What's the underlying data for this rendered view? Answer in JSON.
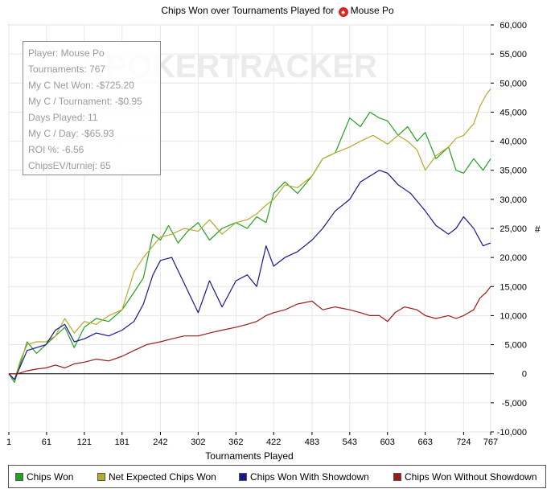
{
  "title_prefix": "Chips Won over Tournaments Played for",
  "title_player": "Mouse Po",
  "watermark": "POKERTRACKER",
  "info": [
    "Player: Mouse Po",
    "Tournaments: 767",
    "My C Net Won: -$725.20",
    "My C / Tournament: -$0.95",
    "Days Played: 11",
    "My C / Day: -$65.93",
    "ROI %: -6.56",
    "ChipsEV/turniej: 65"
  ],
  "chart_data": {
    "type": "line",
    "title": "Chips Won over Tournaments Played for Mouse Po",
    "xlabel": "Tournaments Played",
    "ylabel": "#",
    "xlim": [
      1,
      767
    ],
    "ylim": [
      -10000,
      60000
    ],
    "xticks": [
      1,
      61,
      121,
      181,
      242,
      302,
      362,
      422,
      483,
      543,
      603,
      663,
      724,
      767
    ],
    "yticks": [
      -10000,
      -5000,
      0,
      5000,
      10000,
      15000,
      20000,
      25000,
      30000,
      35000,
      40000,
      45000,
      50000,
      55000,
      60000
    ],
    "ytick_labels": [
      "-10,000",
      "-5,000",
      "0",
      "5,000",
      "10,000",
      "15,000",
      "20,000",
      "25,000",
      "30,000",
      "35,000",
      "40,000",
      "45,000",
      "50,000",
      "55,000",
      "60,000"
    ],
    "grid": true,
    "legend_position": "bottom",
    "series": [
      {
        "name": "Chips Won",
        "color": "#22a022",
        "points": [
          [
            1,
            0
          ],
          [
            10,
            -1500
          ],
          [
            20,
            2000
          ],
          [
            30,
            5500
          ],
          [
            45,
            3500
          ],
          [
            60,
            5000
          ],
          [
            75,
            6500
          ],
          [
            90,
            8000
          ],
          [
            105,
            4500
          ],
          [
            121,
            8000
          ],
          [
            140,
            9500
          ],
          [
            160,
            9000
          ],
          [
            181,
            11000
          ],
          [
            200,
            14000
          ],
          [
            215,
            16500
          ],
          [
            230,
            24000
          ],
          [
            242,
            23000
          ],
          [
            255,
            25500
          ],
          [
            270,
            22500
          ],
          [
            285,
            24500
          ],
          [
            302,
            26000
          ],
          [
            320,
            23000
          ],
          [
            340,
            25000
          ],
          [
            362,
            26000
          ],
          [
            380,
            25000
          ],
          [
            395,
            27000
          ],
          [
            410,
            26000
          ],
          [
            422,
            31000
          ],
          [
            440,
            33000
          ],
          [
            460,
            31000
          ],
          [
            483,
            34000
          ],
          [
            500,
            37000
          ],
          [
            520,
            38000
          ],
          [
            543,
            44000
          ],
          [
            560,
            42500
          ],
          [
            575,
            45000
          ],
          [
            590,
            44000
          ],
          [
            603,
            43500
          ],
          [
            620,
            41000
          ],
          [
            635,
            42500
          ],
          [
            650,
            40000
          ],
          [
            663,
            41500
          ],
          [
            680,
            37000
          ],
          [
            700,
            39000
          ],
          [
            712,
            35000
          ],
          [
            724,
            34500
          ],
          [
            740,
            37000
          ],
          [
            755,
            35000
          ],
          [
            767,
            37000
          ]
        ]
      },
      {
        "name": "Net Expected Chips Won",
        "color": "#b5aa2a",
        "points": [
          [
            1,
            0
          ],
          [
            10,
            -1000
          ],
          [
            20,
            2500
          ],
          [
            30,
            5000
          ],
          [
            45,
            5500
          ],
          [
            60,
            5500
          ],
          [
            75,
            6500
          ],
          [
            90,
            9500
          ],
          [
            105,
            7000
          ],
          [
            121,
            9000
          ],
          [
            140,
            8500
          ],
          [
            160,
            10000
          ],
          [
            181,
            11000
          ],
          [
            200,
            17500
          ],
          [
            215,
            20000
          ],
          [
            230,
            22000
          ],
          [
            242,
            23500
          ],
          [
            260,
            24000
          ],
          [
            280,
            25000
          ],
          [
            302,
            24500
          ],
          [
            320,
            26500
          ],
          [
            340,
            24000
          ],
          [
            362,
            26000
          ],
          [
            380,
            26500
          ],
          [
            395,
            27500
          ],
          [
            410,
            29000
          ],
          [
            422,
            30000
          ],
          [
            440,
            32500
          ],
          [
            460,
            32000
          ],
          [
            483,
            34000
          ],
          [
            500,
            37000
          ],
          [
            520,
            38000
          ],
          [
            543,
            39000
          ],
          [
            560,
            40000
          ],
          [
            580,
            41000
          ],
          [
            603,
            39500
          ],
          [
            620,
            41000
          ],
          [
            635,
            40000
          ],
          [
            650,
            38500
          ],
          [
            663,
            35000
          ],
          [
            680,
            37500
          ],
          [
            700,
            39000
          ],
          [
            712,
            40500
          ],
          [
            724,
            41000
          ],
          [
            740,
            43000
          ],
          [
            750,
            46000
          ],
          [
            760,
            48000
          ],
          [
            767,
            49000
          ]
        ]
      },
      {
        "name": "Chips Won With Showdown",
        "color": "#16168e",
        "points": [
          [
            1,
            0
          ],
          [
            10,
            -1000
          ],
          [
            20,
            1500
          ],
          [
            30,
            4000
          ],
          [
            45,
            4500
          ],
          [
            60,
            5000
          ],
          [
            75,
            7500
          ],
          [
            90,
            8500
          ],
          [
            105,
            5500
          ],
          [
            121,
            6000
          ],
          [
            140,
            7000
          ],
          [
            160,
            6500
          ],
          [
            181,
            7500
          ],
          [
            200,
            9000
          ],
          [
            215,
            12000
          ],
          [
            230,
            17000
          ],
          [
            242,
            19500
          ],
          [
            260,
            20000
          ],
          [
            280,
            15500
          ],
          [
            302,
            10500
          ],
          [
            320,
            16000
          ],
          [
            340,
            11500
          ],
          [
            362,
            16000
          ],
          [
            380,
            17000
          ],
          [
            395,
            15000
          ],
          [
            410,
            22000
          ],
          [
            422,
            18500
          ],
          [
            440,
            20000
          ],
          [
            460,
            21000
          ],
          [
            483,
            23000
          ],
          [
            500,
            25000
          ],
          [
            520,
            28000
          ],
          [
            543,
            30000
          ],
          [
            560,
            33000
          ],
          [
            575,
            34000
          ],
          [
            590,
            35000
          ],
          [
            603,
            34500
          ],
          [
            620,
            32500
          ],
          [
            640,
            31000
          ],
          [
            663,
            28000
          ],
          [
            680,
            25500
          ],
          [
            700,
            24000
          ],
          [
            712,
            25000
          ],
          [
            724,
            27000
          ],
          [
            740,
            25000
          ],
          [
            755,
            22000
          ],
          [
            767,
            22500
          ]
        ]
      },
      {
        "name": "Chips Won Without Showdown",
        "color": "#9b1a1a",
        "points": [
          [
            1,
            0
          ],
          [
            15,
            0
          ],
          [
            30,
            500
          ],
          [
            45,
            800
          ],
          [
            60,
            1000
          ],
          [
            75,
            1500
          ],
          [
            90,
            1000
          ],
          [
            105,
            1700
          ],
          [
            121,
            2000
          ],
          [
            140,
            2500
          ],
          [
            160,
            2200
          ],
          [
            181,
            3000
          ],
          [
            200,
            4000
          ],
          [
            220,
            5000
          ],
          [
            242,
            5500
          ],
          [
            260,
            6000
          ],
          [
            280,
            6500
          ],
          [
            302,
            6500
          ],
          [
            320,
            7000
          ],
          [
            340,
            7500
          ],
          [
            362,
            8000
          ],
          [
            380,
            8500
          ],
          [
            395,
            9000
          ],
          [
            410,
            10000
          ],
          [
            422,
            10500
          ],
          [
            440,
            11000
          ],
          [
            460,
            12000
          ],
          [
            483,
            12500
          ],
          [
            500,
            11000
          ],
          [
            520,
            11500
          ],
          [
            543,
            11000
          ],
          [
            560,
            10500
          ],
          [
            575,
            10000
          ],
          [
            590,
            10000
          ],
          [
            603,
            9000
          ],
          [
            615,
            10500
          ],
          [
            630,
            11500
          ],
          [
            650,
            11000
          ],
          [
            663,
            10000
          ],
          [
            680,
            9500
          ],
          [
            700,
            10000
          ],
          [
            712,
            9500
          ],
          [
            724,
            10000
          ],
          [
            740,
            11000
          ],
          [
            750,
            13000
          ],
          [
            760,
            14000
          ],
          [
            767,
            15000
          ]
        ]
      }
    ]
  },
  "legend": [
    {
      "label": "Chips Won",
      "color": "#22a022"
    },
    {
      "label": "Net Expected Chips Won",
      "color": "#b5aa2a"
    },
    {
      "label": "Chips Won With Showdown",
      "color": "#16168e"
    },
    {
      "label": "Chips Won Without Showdown",
      "color": "#9b1a1a"
    }
  ]
}
